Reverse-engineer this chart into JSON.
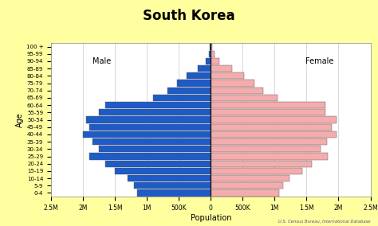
{
  "title": "South Korea",
  "xlabel": "Population",
  "ylabel": "Age",
  "bg_outer": "#FFFFA0",
  "bg_inner": "#FFFFFF",
  "male_color": "#1E5BC6",
  "female_color": "#F4ACAC",
  "male_label": "Male",
  "female_label": "Female",
  "source_text": "U.S. Census Bureau, International Database",
  "age_groups": [
    "0-4",
    "5-9",
    "10-14",
    "15-19",
    "20-24",
    "25-29",
    "30-34",
    "35-39",
    "40-44",
    "45-49",
    "50-54",
    "55-59",
    "60-64",
    "65-69",
    "70-74",
    "75-79",
    "80-84",
    "85-89",
    "90-94",
    "95-99",
    "100 +"
  ],
  "male_values": [
    1150000,
    1200000,
    1300000,
    1500000,
    1650000,
    1900000,
    1750000,
    1850000,
    2000000,
    1900000,
    1950000,
    1750000,
    1650000,
    900000,
    680000,
    530000,
    380000,
    200000,
    80000,
    30000,
    10000
  ],
  "female_values": [
    1070000,
    1130000,
    1230000,
    1430000,
    1580000,
    1830000,
    1720000,
    1820000,
    1970000,
    1900000,
    1970000,
    1800000,
    1800000,
    1050000,
    820000,
    680000,
    520000,
    330000,
    140000,
    55000,
    20000
  ],
  "xlim": 2500000,
  "xticks": [
    -2500000,
    -2000000,
    -1500000,
    -1000000,
    -500000,
    0,
    500000,
    1000000,
    1500000,
    2000000,
    2500000
  ],
  "xtick_labels": [
    "2.5M",
    "2M",
    "1.5M",
    "1M",
    "500K",
    "0",
    "500K",
    "1M",
    "1.5M",
    "2M",
    "2.5M"
  ]
}
